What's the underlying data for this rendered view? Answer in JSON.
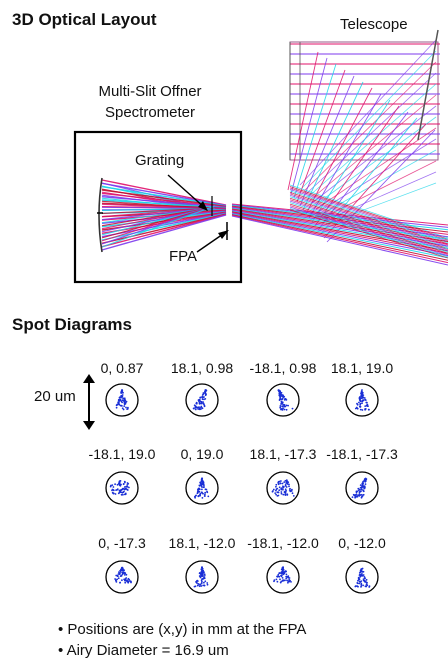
{
  "layout": {
    "title": "3D Optical Layout",
    "telescope_label": "Telescope",
    "spectrometer_label_line1": "Multi-Slit Offner",
    "spectrometer_label_line2": "Spectrometer",
    "grating_label": "Grating",
    "fpa_label": "FPA",
    "ray_colors": [
      "#e0106a",
      "#7c3aed",
      "#18d4e8",
      "#c01030"
    ]
  },
  "spots": {
    "title": "Spot Diagrams",
    "scale_label": "20 um",
    "labels": [
      "0, 0.87",
      "18.1, 0.98",
      "-18.1, 0.98",
      "18.1, 19.0",
      "-18.1, 19.0",
      "0, 19.0",
      "18.1, -17.3",
      "-18.1, -17.3",
      "0, -17.3",
      "18.1, -12.0",
      "-18.1, -12.0",
      "0, -12.0"
    ],
    "spot_color": "#1a2fd6"
  },
  "notes": [
    "• Positions are (x,y) in mm at the FPA",
    "• Airy Diameter = 16.9 um"
  ]
}
